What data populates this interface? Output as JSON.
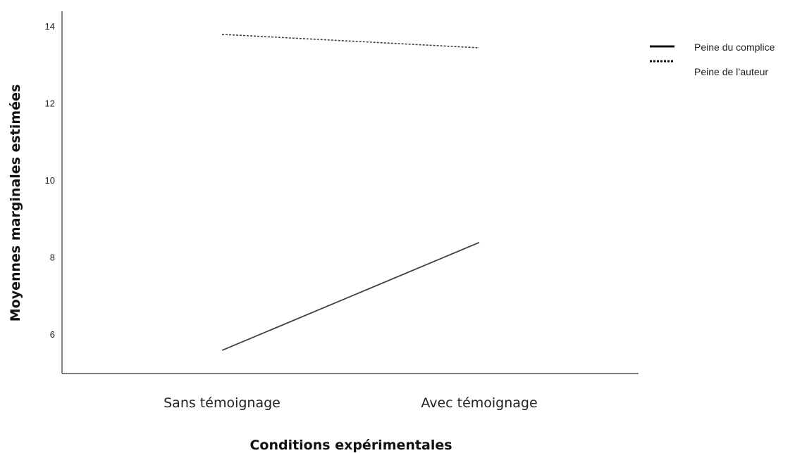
{
  "chart_data": {
    "type": "line",
    "title": "",
    "xlabel": "Conditions expérimentales",
    "ylabel": "Moyennes marginales estimées",
    "categories": [
      "Sans témoignage",
      "Avec témoignage"
    ],
    "ylim": [
      5,
      14.4
    ],
    "yticks": [
      6,
      8,
      10,
      12,
      14
    ],
    "grid": false,
    "legend_position": "top-right",
    "series": [
      {
        "name": "Peine du complice",
        "values": [
          5.6,
          8.4
        ],
        "line_style": "solid",
        "color": "#404040"
      },
      {
        "name": "Peine de l’auteur",
        "values": [
          13.8,
          13.45
        ],
        "line_style": "dotted",
        "color": "#404040"
      }
    ]
  }
}
